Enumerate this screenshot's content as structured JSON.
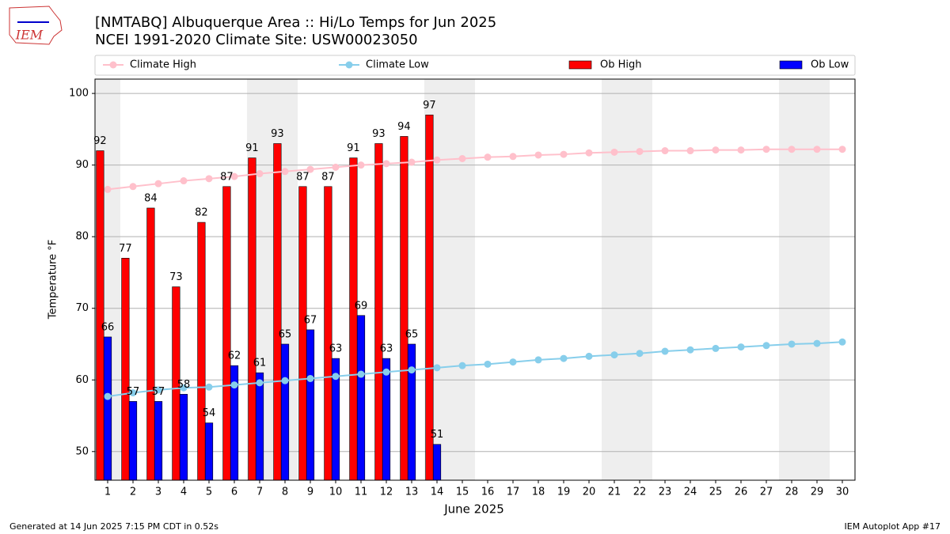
{
  "chart_data": {
    "type": "bar",
    "title": "[NMTABQ] Albuquerque Area :: Hi/Lo Temps for Jun 2025",
    "subtitle": "NCEI 1991-2020 Climate Site: USW00023050",
    "x_label": "June 2025",
    "y_label": "Temperature °F",
    "logo": "IEM",
    "footer_left": "Generated at 14 Jun 2025 7:15 PM CDT in 0.52s",
    "footer_right": "IEM Autoplot App #17",
    "x": [
      1,
      2,
      3,
      4,
      5,
      6,
      7,
      8,
      9,
      10,
      11,
      12,
      13,
      14,
      15,
      16,
      17,
      18,
      19,
      20,
      21,
      22,
      23,
      24,
      25,
      26,
      27,
      28,
      29,
      30
    ],
    "xlim": [
      0.5,
      30.5
    ],
    "xticks": [
      1,
      2,
      3,
      4,
      5,
      6,
      7,
      8,
      9,
      10,
      11,
      12,
      13,
      14,
      15,
      16,
      17,
      18,
      19,
      20,
      21,
      22,
      23,
      24,
      25,
      26,
      27,
      28,
      29,
      30
    ],
    "ylim": [
      46,
      102
    ],
    "yticks": [
      50,
      60,
      70,
      80,
      90,
      100
    ],
    "grid": true,
    "shaded_days": [
      1,
      7,
      8,
      14,
      15,
      21,
      22,
      28,
      29
    ],
    "series": [
      {
        "name": "Climate High",
        "type": "line",
        "color": "#ffc0cb",
        "values": [
          86.6,
          87.0,
          87.4,
          87.8,
          88.1,
          88.4,
          88.8,
          89.1,
          89.4,
          89.7,
          90.0,
          90.2,
          90.4,
          90.7,
          90.9,
          91.1,
          91.2,
          91.4,
          91.5,
          91.7,
          91.8,
          91.9,
          92.0,
          92.0,
          92.1,
          92.1,
          92.2,
          92.2,
          92.2,
          92.2
        ]
      },
      {
        "name": "Climate Low",
        "type": "line",
        "color": "#87ceeb",
        "values": [
          57.7,
          58.2,
          58.6,
          58.9,
          59.0,
          59.3,
          59.6,
          59.9,
          60.2,
          60.5,
          60.8,
          61.1,
          61.4,
          61.7,
          62.0,
          62.2,
          62.5,
          62.8,
          63.0,
          63.3,
          63.5,
          63.7,
          64.0,
          64.2,
          64.4,
          64.6,
          64.8,
          65.0,
          65.1,
          65.3
        ]
      },
      {
        "name": "Ob High",
        "type": "bar",
        "color": "#ff0000",
        "values": [
          92,
          77,
          84,
          73,
          82,
          87,
          91,
          93,
          87,
          87,
          91,
          93,
          94,
          97,
          null,
          null,
          null,
          null,
          null,
          null,
          null,
          null,
          null,
          null,
          null,
          null,
          null,
          null,
          null,
          null
        ]
      },
      {
        "name": "Ob Low",
        "type": "bar",
        "color": "#0000ff",
        "values": [
          66,
          57,
          57,
          58,
          54,
          62,
          61,
          65,
          67,
          63,
          69,
          63,
          65,
          51,
          null,
          null,
          null,
          null,
          null,
          null,
          null,
          null,
          null,
          null,
          null,
          null,
          null,
          null,
          null,
          null
        ]
      }
    ]
  }
}
